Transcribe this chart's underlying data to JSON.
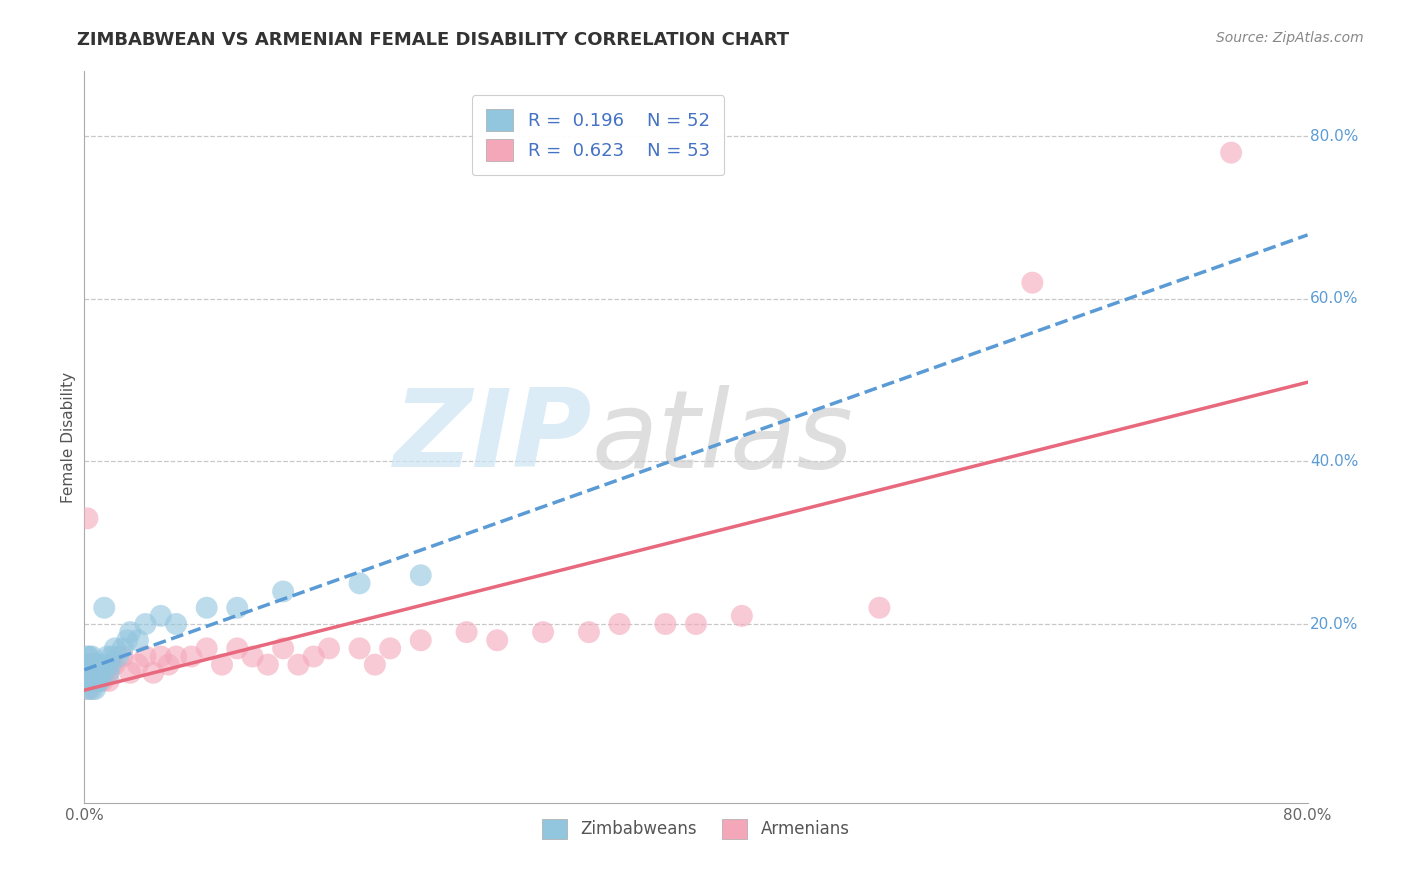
{
  "title": "ZIMBABWEAN VS ARMENIAN FEMALE DISABILITY CORRELATION CHART",
  "source": "Source: ZipAtlas.com",
  "ylabel": "Female Disability",
  "xlim": [
    0.0,
    0.8
  ],
  "ylim": [
    -0.02,
    0.88
  ],
  "r_zimbabwe": 0.196,
  "n_zimbabwe": 52,
  "r_armenia": 0.623,
  "n_armenia": 53,
  "color_zimbabwe": "#92c5de",
  "color_armenia": "#f4a7b9",
  "color_zimbabwe_line": "#5b9bd5",
  "color_armenia_line": "#e8697d",
  "background_color": "#ffffff",
  "grid_color": "#c8c8c8",
  "zimbabwe_x": [
    0.001,
    0.001,
    0.001,
    0.002,
    0.002,
    0.002,
    0.002,
    0.003,
    0.003,
    0.003,
    0.003,
    0.004,
    0.004,
    0.004,
    0.005,
    0.005,
    0.005,
    0.005,
    0.006,
    0.006,
    0.006,
    0.007,
    0.007,
    0.007,
    0.008,
    0.008,
    0.009,
    0.009,
    0.01,
    0.01,
    0.011,
    0.012,
    0.013,
    0.014,
    0.015,
    0.016,
    0.017,
    0.018,
    0.02,
    0.022,
    0.025,
    0.028,
    0.03,
    0.035,
    0.04,
    0.05,
    0.06,
    0.08,
    0.1,
    0.13,
    0.18,
    0.22
  ],
  "zimbabwe_y": [
    0.14,
    0.15,
    0.13,
    0.15,
    0.16,
    0.14,
    0.12,
    0.13,
    0.15,
    0.14,
    0.16,
    0.13,
    0.15,
    0.14,
    0.12,
    0.14,
    0.15,
    0.16,
    0.13,
    0.14,
    0.15,
    0.12,
    0.14,
    0.13,
    0.15,
    0.14,
    0.13,
    0.15,
    0.14,
    0.13,
    0.15,
    0.14,
    0.22,
    0.15,
    0.16,
    0.14,
    0.15,
    0.16,
    0.17,
    0.16,
    0.17,
    0.18,
    0.19,
    0.18,
    0.2,
    0.21,
    0.2,
    0.22,
    0.22,
    0.24,
    0.25,
    0.26
  ],
  "armenia_x": [
    0.001,
    0.002,
    0.002,
    0.003,
    0.003,
    0.004,
    0.004,
    0.005,
    0.005,
    0.006,
    0.007,
    0.008,
    0.009,
    0.01,
    0.012,
    0.013,
    0.015,
    0.016,
    0.018,
    0.02,
    0.025,
    0.03,
    0.035,
    0.04,
    0.045,
    0.05,
    0.055,
    0.06,
    0.07,
    0.08,
    0.09,
    0.1,
    0.11,
    0.12,
    0.13,
    0.14,
    0.15,
    0.16,
    0.18,
    0.19,
    0.2,
    0.22,
    0.25,
    0.27,
    0.3,
    0.33,
    0.35,
    0.38,
    0.4,
    0.43,
    0.52,
    0.62,
    0.75
  ],
  "armenia_y": [
    0.15,
    0.33,
    0.13,
    0.14,
    0.12,
    0.13,
    0.14,
    0.14,
    0.13,
    0.15,
    0.13,
    0.14,
    0.13,
    0.14,
    0.13,
    0.14,
    0.14,
    0.13,
    0.15,
    0.15,
    0.16,
    0.14,
    0.15,
    0.16,
    0.14,
    0.16,
    0.15,
    0.16,
    0.16,
    0.17,
    0.15,
    0.17,
    0.16,
    0.15,
    0.17,
    0.15,
    0.16,
    0.17,
    0.17,
    0.15,
    0.17,
    0.18,
    0.19,
    0.18,
    0.19,
    0.19,
    0.2,
    0.2,
    0.2,
    0.21,
    0.22,
    0.62,
    0.78
  ]
}
